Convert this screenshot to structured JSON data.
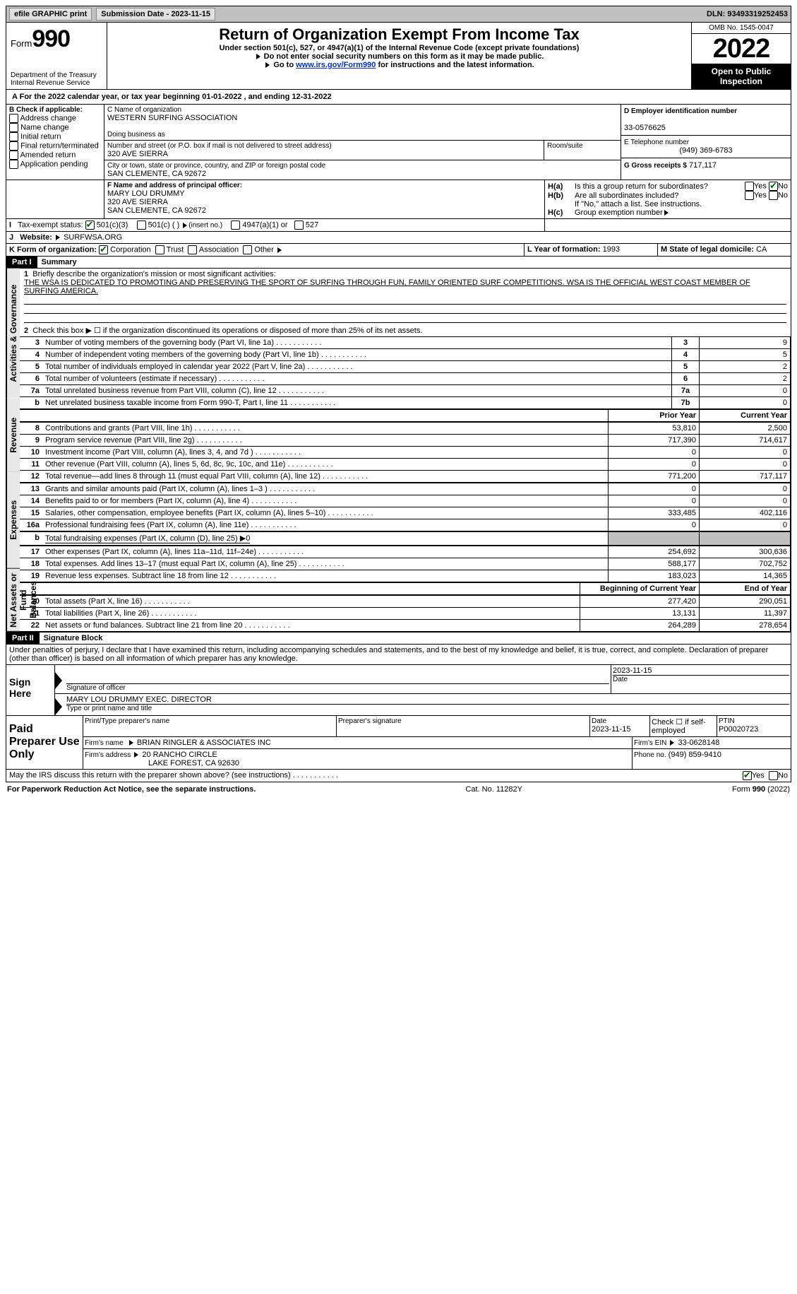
{
  "topbar": {
    "efile": "efile GRAPHIC print",
    "submission_label": "Submission Date - 2023-11-15",
    "dln": "DLN: 93493319252453"
  },
  "header": {
    "form_label": "Form",
    "form_number": "990",
    "dept": "Department of the Treasury",
    "irs": "Internal Revenue Service",
    "title": "Return of Organization Exempt From Income Tax",
    "subtitle": "Under section 501(c), 527, or 4947(a)(1) of the Internal Revenue Code (except private foundations)",
    "note1": "Do not enter social security numbers on this form as it may be made public.",
    "note2_pre": "Go to ",
    "note2_link": "www.irs.gov/Form990",
    "note2_post": " for instructions and the latest information.",
    "omb": "OMB No. 1545-0047",
    "year": "2022",
    "open": "Open to Public Inspection"
  },
  "lineA": {
    "text_pre": "For the 2022 calendar year, or tax year beginning ",
    "begin": "01-01-2022",
    "mid": " , and ending ",
    "end": "12-31-2022"
  },
  "boxB": {
    "label": "B Check if applicable:",
    "items": [
      "Address change",
      "Name change",
      "Initial return",
      "Final return/terminated",
      "Amended return",
      "Application pending"
    ]
  },
  "boxC": {
    "name_label": "C Name of organization",
    "name": "WESTERN SURFING ASSOCIATION",
    "dba_label": "Doing business as",
    "addr_label": "Number and street (or P.O. box if mail is not delivered to street address)",
    "room_label": "Room/suite",
    "addr": "320 AVE SIERRA",
    "city_label": "City or town, state or province, country, and ZIP or foreign postal code",
    "city": "SAN CLEMENTE, CA  92672"
  },
  "boxD": {
    "label": "D Employer identification number",
    "value": "33-0576625"
  },
  "boxE": {
    "label": "E Telephone number",
    "value": "(949) 369-6783"
  },
  "boxG": {
    "label": "G Gross receipts $",
    "value": "717,117"
  },
  "boxF": {
    "label": "F Name and address of principal officer:",
    "name": "MARY LOU DRUMMY",
    "addr1": "320 AVE SIERRA",
    "addr2": "SAN CLEMENTE, CA  92672"
  },
  "boxH": {
    "a": "Is this a group return for subordinates?",
    "b": "Are all subordinates included?",
    "b_note": "If \"No,\" attach a list. See instructions.",
    "c": "Group exemption number",
    "yes": "Yes",
    "no": "No"
  },
  "lineI": {
    "label": "Tax-exempt status:",
    "opt1": "501(c)(3)",
    "opt2": "501(c) (  )",
    "opt2_hint": "(insert no.)",
    "opt3": "4947(a)(1) or",
    "opt4": "527"
  },
  "lineJ": {
    "label": "Website:",
    "value": "SURFWSA.ORG"
  },
  "lineK": {
    "label": "K Form of organization:",
    "corp": "Corporation",
    "trust": "Trust",
    "assoc": "Association",
    "other": "Other"
  },
  "lineL": {
    "label": "L Year of formation:",
    "value": "1993"
  },
  "lineM": {
    "label": "M State of legal domicile:",
    "value": "CA"
  },
  "part1": {
    "hdr": "Part I",
    "title": "Summary",
    "tab_ag": "Activities & Governance",
    "tab_rev": "Revenue",
    "tab_exp": "Expenses",
    "tab_net": "Net Assets or Fund Balances",
    "line1": "Briefly describe the organization's mission or most significant activities:",
    "mission": "THE WSA IS DEDICATED TO PROMOTING AND PRESERVING THE SPORT OF SURFING THROUGH FUN, FAMILY ORIENTED SURF COMPETITIONS. WSA IS THE OFFICIAL WEST COAST MEMBER OF SURFING AMERICA.",
    "line2": "Check this box ▶ ☐ if the organization discontinued its operations or disposed of more than 25% of its net assets.",
    "rows_ag": [
      {
        "n": "3",
        "t": "Number of voting members of the governing body (Part VI, line 1a)",
        "box": "3",
        "v": "9"
      },
      {
        "n": "4",
        "t": "Number of independent voting members of the governing body (Part VI, line 1b)",
        "box": "4",
        "v": "5"
      },
      {
        "n": "5",
        "t": "Total number of individuals employed in calendar year 2022 (Part V, line 2a)",
        "box": "5",
        "v": "2"
      },
      {
        "n": "6",
        "t": "Total number of volunteers (estimate if necessary)",
        "box": "6",
        "v": "2"
      },
      {
        "n": "7a",
        "t": "Total unrelated business revenue from Part VIII, column (C), line 12",
        "box": "7a",
        "v": "0"
      },
      {
        "n": "b",
        "t": "Net unrelated business taxable income from Form 990-T, Part I, line 11",
        "box": "7b",
        "v": "0"
      }
    ],
    "col_prior": "Prior Year",
    "col_current": "Current Year",
    "rows_rev": [
      {
        "n": "8",
        "t": "Contributions and grants (Part VIII, line 1h)",
        "p": "53,810",
        "c": "2,500"
      },
      {
        "n": "9",
        "t": "Program service revenue (Part VIII, line 2g)",
        "p": "717,390",
        "c": "714,617"
      },
      {
        "n": "10",
        "t": "Investment income (Part VIII, column (A), lines 3, 4, and 7d )",
        "p": "0",
        "c": "0"
      },
      {
        "n": "11",
        "t": "Other revenue (Part VIII, column (A), lines 5, 6d, 8c, 9c, 10c, and 11e)",
        "p": "0",
        "c": "0"
      },
      {
        "n": "12",
        "t": "Total revenue—add lines 8 through 11 (must equal Part VIII, column (A), line 12)",
        "p": "771,200",
        "c": "717,117"
      }
    ],
    "rows_exp": [
      {
        "n": "13",
        "t": "Grants and similar amounts paid (Part IX, column (A), lines 1–3 )",
        "p": "0",
        "c": "0"
      },
      {
        "n": "14",
        "t": "Benefits paid to or for members (Part IX, column (A), line 4)",
        "p": "0",
        "c": "0"
      },
      {
        "n": "15",
        "t": "Salaries, other compensation, employee benefits (Part IX, column (A), lines 5–10)",
        "p": "333,485",
        "c": "402,116"
      },
      {
        "n": "16a",
        "t": "Professional fundraising fees (Part IX, column (A), line 11e)",
        "p": "0",
        "c": "0"
      }
    ],
    "line16b": "Total fundraising expenses (Part IX, column (D), line 25) ▶0",
    "rows_exp2": [
      {
        "n": "17",
        "t": "Other expenses (Part IX, column (A), lines 11a–11d, 11f–24e)",
        "p": "254,692",
        "c": "300,636"
      },
      {
        "n": "18",
        "t": "Total expenses. Add lines 13–17 (must equal Part IX, column (A), line 25)",
        "p": "588,177",
        "c": "702,752"
      },
      {
        "n": "19",
        "t": "Revenue less expenses. Subtract line 18 from line 12",
        "p": "183,023",
        "c": "14,365"
      }
    ],
    "col_begin": "Beginning of Current Year",
    "col_end": "End of Year",
    "rows_net": [
      {
        "n": "20",
        "t": "Total assets (Part X, line 16)",
        "p": "277,420",
        "c": "290,051"
      },
      {
        "n": "21",
        "t": "Total liabilities (Part X, line 26)",
        "p": "13,131",
        "c": "11,397"
      },
      {
        "n": "22",
        "t": "Net assets or fund balances. Subtract line 21 from line 20",
        "p": "264,289",
        "c": "278,654"
      }
    ]
  },
  "part2": {
    "hdr": "Part II",
    "title": "Signature Block",
    "perjury": "Under penalties of perjury, I declare that I have examined this return, including accompanying schedules and statements, and to the best of my knowledge and belief, it is true, correct, and complete. Declaration of preparer (other than officer) is based on all information of which preparer has any knowledge.",
    "sign_here": "Sign Here",
    "sig_officer": "Signature of officer",
    "sig_date": "2023-11-15",
    "date_lbl": "Date",
    "officer_name": "MARY LOU DRUMMY  EXEC. DIRECTOR",
    "type_name": "Type or print name and title",
    "paid": "Paid Preparer Use Only",
    "prep_name_lbl": "Print/Type preparer's name",
    "prep_sig_lbl": "Preparer's signature",
    "prep_date_lbl": "Date",
    "prep_date": "2023-11-15",
    "prep_check": "Check ☐ if self-employed",
    "ptin_lbl": "PTIN",
    "ptin": "P00020723",
    "firm_name_lbl": "Firm's name",
    "firm_name": "BRIAN RINGLER & ASSOCIATES INC",
    "firm_ein_lbl": "Firm's EIN",
    "firm_ein": "33-0628148",
    "firm_addr_lbl": "Firm's address",
    "firm_addr1": "20 RANCHO CIRCLE",
    "firm_addr2": "LAKE FOREST, CA  92630",
    "firm_phone_lbl": "Phone no.",
    "firm_phone": "(949) 859-9410",
    "discuss": "May the IRS discuss this return with the preparer shown above? (see instructions)",
    "yes": "Yes",
    "no": "No"
  },
  "footer": {
    "pra": "For Paperwork Reduction Act Notice, see the separate instructions.",
    "cat": "Cat. No. 11282Y",
    "form": "Form 990 (2022)"
  }
}
